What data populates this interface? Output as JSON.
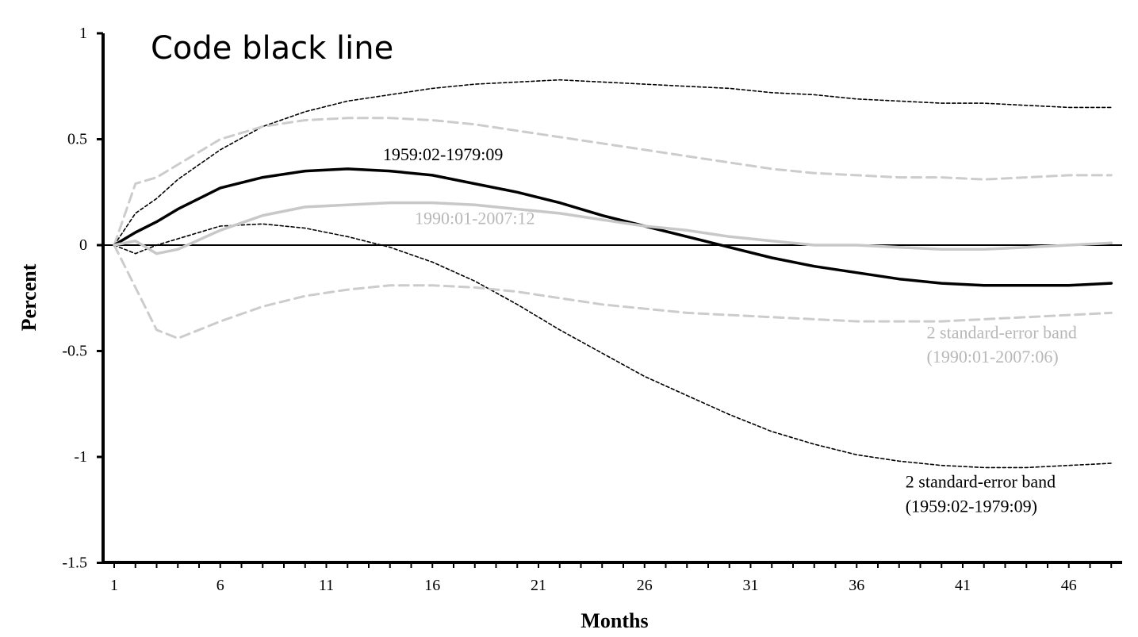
{
  "overlay_title": "Code black line",
  "chart_data": {
    "type": "line",
    "title": "",
    "xlabel": "Months",
    "ylabel": "Percent",
    "xlim": [
      0.5,
      49
    ],
    "ylim": [
      -1.5,
      1
    ],
    "x_ticks": [
      1,
      6,
      11,
      16,
      21,
      26,
      31,
      36,
      41,
      46
    ],
    "y_ticks": [
      1,
      0.5,
      0,
      -0.5,
      -1,
      -1.5
    ],
    "y_tick_labels": [
      "1",
      "0.5",
      "0",
      "-0.5",
      "-1",
      "-1.5"
    ],
    "grid": false,
    "zero_line": true,
    "x": [
      1,
      2,
      3,
      4,
      6,
      8,
      10,
      12,
      14,
      16,
      18,
      20,
      22,
      24,
      26,
      28,
      30,
      32,
      34,
      36,
      38,
      40,
      42,
      44,
      46,
      48
    ],
    "series": [
      {
        "name": "1959:02-1979:09",
        "color": "#000000",
        "style": "solid-thick",
        "values": [
          0,
          0.06,
          0.11,
          0.17,
          0.27,
          0.32,
          0.35,
          0.36,
          0.35,
          0.33,
          0.29,
          0.25,
          0.2,
          0.14,
          0.09,
          0.04,
          -0.01,
          -0.06,
          -0.1,
          -0.13,
          -0.16,
          -0.18,
          -0.19,
          -0.19,
          -0.19,
          -0.18
        ]
      },
      {
        "name": "1990:01-2007:12",
        "color": "#c8c8c8",
        "style": "solid-thick",
        "values": [
          0,
          0.02,
          -0.04,
          -0.02,
          0.07,
          0.14,
          0.18,
          0.19,
          0.2,
          0.2,
          0.19,
          0.17,
          0.15,
          0.12,
          0.09,
          0.07,
          0.04,
          0.02,
          0.0,
          0.0,
          -0.01,
          -0.02,
          -0.02,
          -0.01,
          0.0,
          0.01
        ]
      },
      {
        "name": "2 standard-error band (1959:02-1979:09) upper",
        "color": "#000000",
        "style": "dotted",
        "values": [
          0,
          0.15,
          0.22,
          0.31,
          0.45,
          0.56,
          0.63,
          0.68,
          0.71,
          0.74,
          0.76,
          0.77,
          0.78,
          0.77,
          0.76,
          0.75,
          0.74,
          0.72,
          0.71,
          0.69,
          0.68,
          0.67,
          0.67,
          0.66,
          0.65,
          0.65
        ]
      },
      {
        "name": "2 standard-error band (1959:02-1979:09) lower",
        "color": "#000000",
        "style": "dotted",
        "values": [
          0,
          -0.04,
          0.0,
          0.03,
          0.09,
          0.1,
          0.08,
          0.04,
          -0.01,
          -0.08,
          -0.17,
          -0.28,
          -0.4,
          -0.51,
          -0.62,
          -0.71,
          -0.8,
          -0.88,
          -0.94,
          -0.99,
          -1.02,
          -1.04,
          -1.05,
          -1.05,
          -1.04,
          -1.03
        ]
      },
      {
        "name": "2 standard-error band (1990:01-2007:06) upper",
        "color": "#cccccc",
        "style": "dashed",
        "values": [
          0,
          0.29,
          0.32,
          0.38,
          0.5,
          0.56,
          0.59,
          0.6,
          0.6,
          0.59,
          0.57,
          0.54,
          0.51,
          0.48,
          0.45,
          0.42,
          0.39,
          0.36,
          0.34,
          0.33,
          0.32,
          0.32,
          0.31,
          0.32,
          0.33,
          0.33
        ]
      },
      {
        "name": "2 standard-error band (1990:01-2007:06) lower",
        "color": "#cccccc",
        "style": "dashed",
        "values": [
          0,
          -0.2,
          -0.4,
          -0.44,
          -0.36,
          -0.29,
          -0.24,
          -0.21,
          -0.19,
          -0.19,
          -0.2,
          -0.22,
          -0.25,
          -0.28,
          -0.3,
          -0.32,
          -0.33,
          -0.34,
          -0.35,
          -0.36,
          -0.36,
          -0.36,
          -0.35,
          -0.34,
          -0.33,
          -0.32
        ]
      }
    ],
    "annotations": [
      {
        "text": "1959:02-1979:09",
        "x": 16.5,
        "y": 0.4,
        "color": "#000000",
        "anchor": "middle"
      },
      {
        "text": "1990:01-2007:12",
        "x": 18,
        "y": 0.1,
        "color": "#b8b8b8",
        "anchor": "middle"
      },
      {
        "text": "2 standard-error band",
        "x": 39.3,
        "y": -0.44,
        "color": "#b8b8b8",
        "anchor": "start"
      },
      {
        "text": "(1990:01-2007:06)",
        "x": 39.3,
        "y": -0.555,
        "color": "#b8b8b8",
        "anchor": "start"
      },
      {
        "text": "2 standard-error band",
        "x": 38.3,
        "y": -1.145,
        "color": "#000000",
        "anchor": "start"
      },
      {
        "text": "(1959:02-1979:09)",
        "x": 38.3,
        "y": -1.26,
        "color": "#000000",
        "anchor": "start"
      }
    ]
  }
}
